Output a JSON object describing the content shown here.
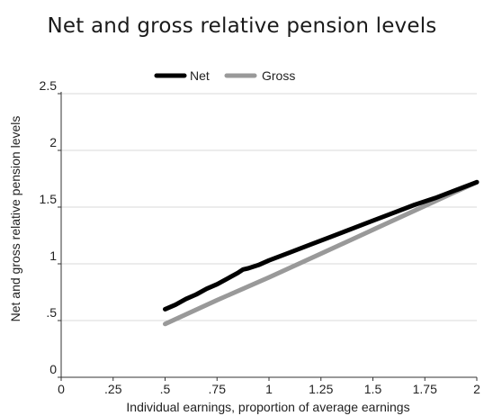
{
  "chart_data": {
    "type": "line",
    "title": "Net and gross relative pension levels",
    "xlabel": "Individual earnings, proportion of average earnings",
    "ylabel": "Net and gross relative pension levels",
    "xlim": [
      0,
      2
    ],
    "ylim": [
      0,
      2.5
    ],
    "x_ticks": [
      "0",
      ".25",
      ".5",
      ".75",
      "1",
      "1.25",
      "1.5",
      "1.75",
      "2"
    ],
    "x_tick_values": [
      0,
      0.25,
      0.5,
      0.75,
      1,
      1.25,
      1.5,
      1.75,
      2
    ],
    "y_ticks": [
      "0",
      ".5",
      "1",
      "1.5",
      "2",
      "2.5"
    ],
    "y_tick_values": [
      0,
      0.5,
      1,
      1.5,
      2,
      2.5
    ],
    "grid": "horizontal",
    "legend_position": "top",
    "series": [
      {
        "name": "Net",
        "color": "#000000",
        "x": [
          0.5,
          0.55,
          0.6,
          0.65,
          0.7,
          0.75,
          0.8,
          0.85,
          0.875,
          0.9,
          0.95,
          1.0,
          1.1,
          1.2,
          1.3,
          1.4,
          1.5,
          1.6,
          1.7,
          1.8,
          1.9,
          2.0
        ],
        "y": [
          0.6,
          0.64,
          0.69,
          0.73,
          0.78,
          0.82,
          0.87,
          0.92,
          0.95,
          0.96,
          0.99,
          1.03,
          1.1,
          1.17,
          1.24,
          1.31,
          1.38,
          1.45,
          1.52,
          1.58,
          1.65,
          1.72
        ]
      },
      {
        "name": "Gross",
        "color": "#999999",
        "x": [
          0.5,
          0.75,
          1.0,
          1.25,
          1.5,
          1.75,
          2.0
        ],
        "y": [
          0.47,
          0.68,
          0.88,
          1.09,
          1.3,
          1.51,
          1.72
        ]
      }
    ]
  }
}
